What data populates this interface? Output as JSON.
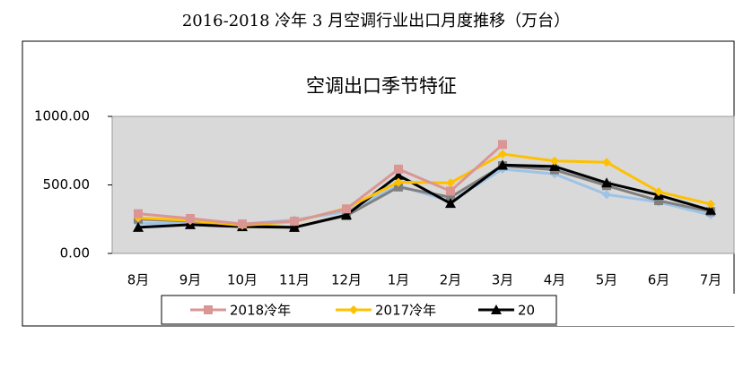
{
  "chart_data": {
    "type": "line",
    "title": "2016-2018 冷年 3 月空调行业出口月度推移（万台）",
    "subtitle": "空调出口季节特征",
    "categories": [
      "8月",
      "9月",
      "10月",
      "11月",
      "12月",
      "1月",
      "2月",
      "3月",
      "4月",
      "5月",
      "6月",
      "7月"
    ],
    "series": [
      {
        "name": "2018冷年",
        "color": "#d99694",
        "marker": "square",
        "values": [
          290,
          255,
          215,
          235,
          325,
          615,
          455,
          795,
          null,
          null,
          null,
          null
        ]
      },
      {
        "name": "2017冷年",
        "color": "#ffc000",
        "marker": "diamond",
        "values": [
          260,
          240,
          205,
          230,
          330,
          520,
          515,
          725,
          675,
          665,
          450,
          360
        ]
      },
      {
        "name": "20",
        "color": "#000000",
        "marker": "triangle",
        "values": [
          190,
          210,
          195,
          190,
          280,
          570,
          365,
          645,
          635,
          515,
          425,
          315
        ]
      },
      {
        "color": "#9dc3e6",
        "marker": "diamond",
        "values": [
          220,
          220,
          215,
          245,
          305,
          495,
          380,
          615,
          580,
          430,
          375,
          280
        ]
      },
      {
        "color": "#808080",
        "marker": "square",
        "values": [
          250,
          235,
          205,
          190,
          275,
          485,
          410,
          640,
          610,
          495,
          385,
          305
        ]
      }
    ],
    "ylim": [
      0,
      1000
    ],
    "yticks": [
      {
        "value": 0,
        "label": "0.00"
      },
      {
        "value": 500,
        "label": "500.00"
      },
      {
        "value": 1000,
        "label": "1000.00"
      }
    ],
    "legend": "bottom"
  }
}
